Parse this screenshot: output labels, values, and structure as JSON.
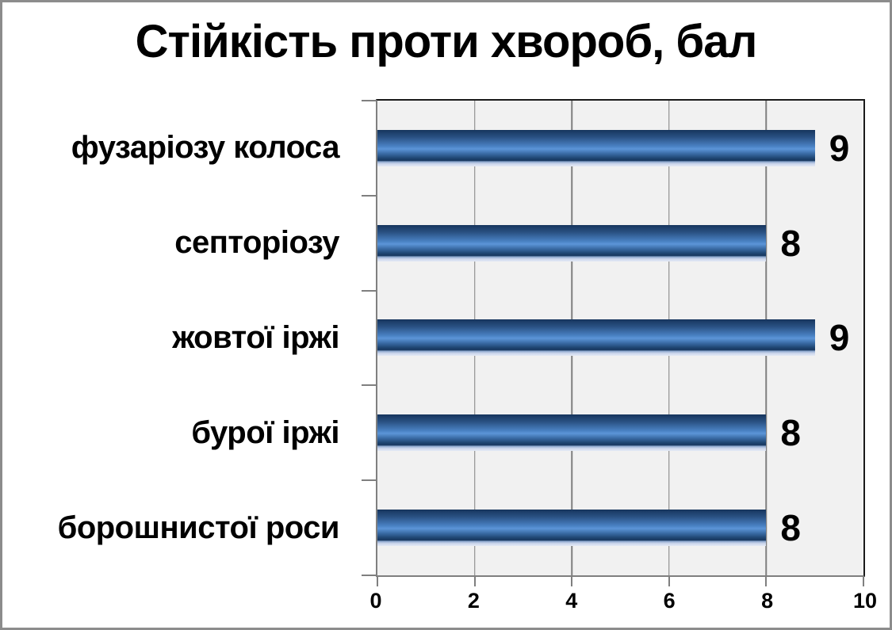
{
  "title": "Стійкість проти хвороб, бал",
  "frame": {
    "background": "#ffffff",
    "border_color": "#8c8c8c"
  },
  "chart_data": {
    "type": "bar",
    "orientation": "horizontal",
    "title": "Стійкість проти хвороб, бал",
    "categories": [
      "фузаріозу колоса",
      "септоріозу",
      "жовтої іржі",
      "бурої іржі",
      "борошнистої роси"
    ],
    "values": [
      9,
      8,
      9,
      8,
      8
    ],
    "data_labels": [
      "9",
      "8",
      "9",
      "8",
      "8"
    ],
    "xlabel": "",
    "ylabel": "",
    "xlim": [
      0,
      10
    ],
    "xticks": [
      0,
      2,
      4,
      6,
      8,
      10
    ],
    "grid": "vertical major gridlines only",
    "legend": "none",
    "plot_background": "#f1f1f1",
    "gridline_color": "#7f7f7f",
    "axis_color": "#7f7f7f",
    "plot_border_color": "#1a1a1a",
    "text_color": "#000000",
    "bar_gradient_stops": [
      {
        "pos": "0%",
        "color": "#16355d"
      },
      {
        "pos": "20%",
        "color": "#2a5183"
      },
      {
        "pos": "45%",
        "color": "#4a82c4"
      },
      {
        "pos": "52%",
        "color": "#5c95d8"
      },
      {
        "pos": "65%",
        "color": "#3a6ba5"
      },
      {
        "pos": "78%",
        "color": "#1e4470"
      },
      {
        "pos": "84%",
        "color": "#17375f"
      },
      {
        "pos": "87%",
        "color": "#8aa5cc"
      },
      {
        "pos": "93%",
        "color": "#ccd6ec"
      },
      {
        "pos": "100%",
        "color": "#e4eaf5"
      }
    ]
  }
}
